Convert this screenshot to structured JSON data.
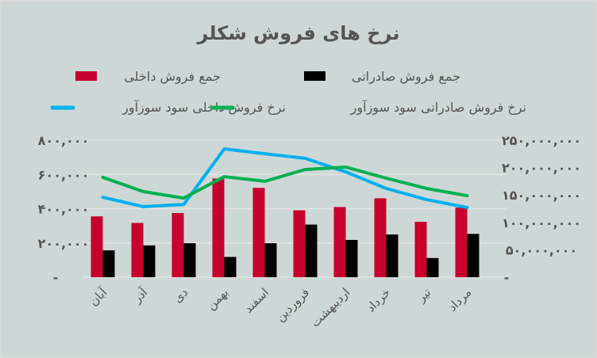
{
  "chart_data": {
    "type": "bar+line",
    "title": "نرخ های فروش شکلر",
    "categories": [
      "آبان",
      "آذر",
      "دی",
      "بهمن",
      "اسفند",
      "فروردین",
      "اردیبهشت",
      "خرداد",
      "تیر",
      "مرداد"
    ],
    "left_axis": {
      "range": [
        0,
        800000
      ],
      "ticks": [
        "-",
        "۲۰۰,۰۰۰",
        "۴۰۰,۰۰۰",
        "۶۰۰,۰۰۰",
        "۸۰۰,۰۰۰"
      ]
    },
    "right_axis": {
      "range": [
        0,
        250000000
      ],
      "ticks": [
        "-",
        "۵۰,۰۰۰,۰۰۰",
        "۱۰۰,۰۰۰,۰۰۰",
        "۱۵۰,۰۰۰,۰۰۰",
        "۲۰۰,۰۰۰,۰۰۰",
        "۲۵۰,۰۰۰,۰۰۰"
      ]
    },
    "grid": true,
    "legend_placement": "top",
    "series": [
      {
        "name": "جمع  فروش داخلی",
        "kind": "bar",
        "axis": "right",
        "color": "#c8002e",
        "values": [
          111000000,
          99000000,
          117000000,
          180000000,
          163000000,
          122000000,
          128000000,
          144000000,
          101000000,
          127000000
        ]
      },
      {
        "name": "جمع  فروش صادراتی",
        "kind": "bar",
        "axis": "right",
        "color": "#000000",
        "values": [
          49000000,
          58000000,
          62000000,
          37000000,
          62000000,
          96000000,
          68000000,
          78000000,
          35000000,
          79000000
        ]
      },
      {
        "name": "نرخ فروش داخلی سود سوزآور",
        "kind": "line",
        "axis": "left",
        "color": "#00b0f0",
        "values": [
          467000,
          412000,
          425000,
          749000,
          721000,
          694000,
          615000,
          518000,
          453000,
          407000
        ]
      },
      {
        "name": "نرخ فروش صادراتی سود سوزآور",
        "kind": "line",
        "axis": "left",
        "color": "#00b050",
        "values": [
          583000,
          500000,
          462000,
          587000,
          560000,
          629000,
          643000,
          578000,
          518000,
          476000
        ]
      }
    ]
  }
}
